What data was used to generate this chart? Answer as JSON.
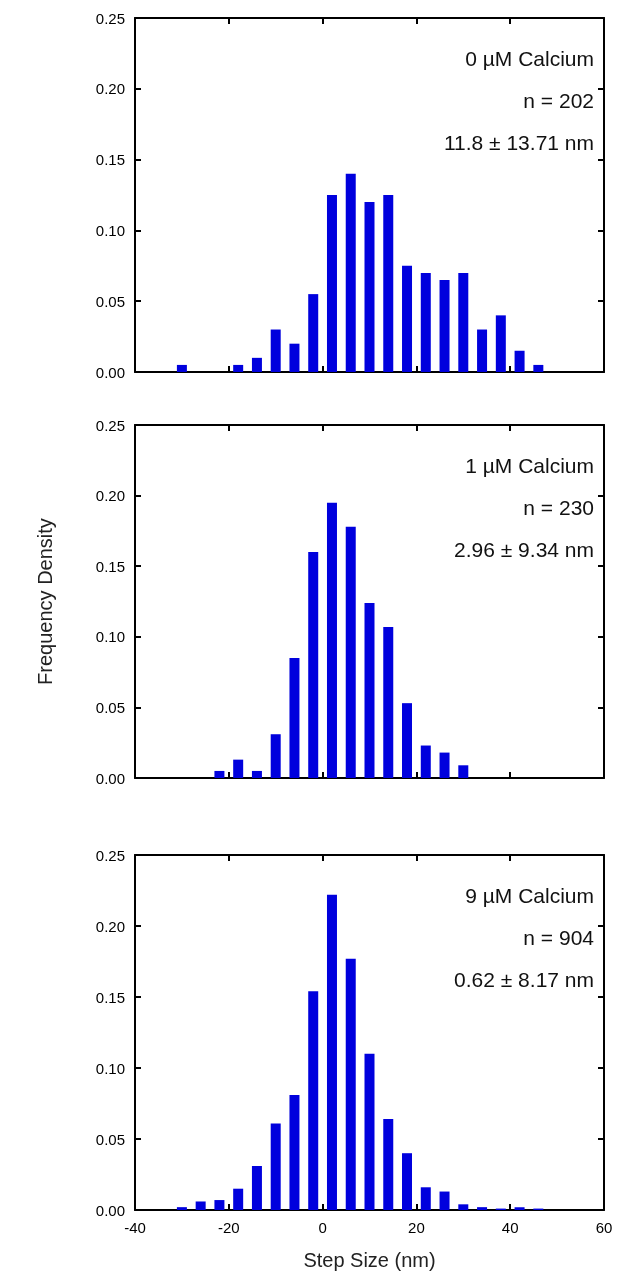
{
  "chart_data": [
    {
      "type": "histogram",
      "bins": [
        -32,
        -28,
        -24,
        -20,
        -16,
        -12,
        -8,
        -4,
        0,
        4,
        8,
        12,
        16,
        20,
        24,
        28,
        32,
        36,
        40,
        44,
        48
      ],
      "values": [
        0.005,
        0,
        0,
        0.005,
        0.01,
        0.03,
        0.02,
        0.055,
        0.125,
        0.14,
        0.12,
        0.125,
        0.075,
        0.07,
        0.065,
        0.07,
        0.03,
        0.04,
        0.015,
        0.005
      ],
      "color": "#0000dd",
      "xlim": [
        -40,
        60
      ],
      "xticks": [
        -40,
        -20,
        0,
        20,
        40,
        60
      ],
      "ylim": [
        0,
        0.25
      ],
      "yticks": [
        {
          "value": 0,
          "label": "0.00"
        },
        0.05,
        {
          "value": 0.1,
          "label": "0.10"
        },
        0.15,
        {
          "value": 0.2,
          "label": "0.20"
        },
        0.25
      ],
      "tick_labels": "y",
      "grid": false,
      "annotations": [
        "0 µM Calcium",
        "n = 202",
        "11.8 ± 13.71 nm"
      ]
    },
    {
      "type": "histogram",
      "bins": [
        -32,
        -28,
        -24,
        -20,
        -16,
        -12,
        -8,
        -4,
        0,
        4,
        8,
        12,
        16,
        20,
        24,
        28,
        32,
        36,
        40,
        44,
        48
      ],
      "values": [
        0,
        0,
        0.005,
        0.013,
        0.005,
        0.031,
        0.085,
        0.16,
        0.195,
        0.178,
        0.124,
        0.107,
        0.053,
        0.023,
        0.018,
        0.009,
        0,
        0,
        0,
        0
      ],
      "color": "#0000dd",
      "xlim": [
        -40,
        60
      ],
      "xticks": [
        -40,
        -20,
        0,
        20,
        40,
        60
      ],
      "ylim": [
        0,
        0.25
      ],
      "yticks": [
        {
          "value": 0,
          "label": "0.00"
        },
        0.05,
        {
          "value": 0.1,
          "label": "0.10"
        },
        0.15,
        {
          "value": 0.2,
          "label": "0.20"
        },
        0.25
      ],
      "tick_labels": "y",
      "grid": false,
      "ylabel": "Frequency Density",
      "annotations": [
        "1 µM Calcium",
        "n = 230",
        "2.96 ± 9.34 nm"
      ]
    },
    {
      "type": "histogram",
      "bins": [
        -32,
        -28,
        -24,
        -20,
        -16,
        -12,
        -8,
        -4,
        0,
        4,
        8,
        12,
        16,
        20,
        24,
        28,
        32,
        36,
        40,
        44,
        48
      ],
      "values": [
        0.002,
        0.006,
        0.007,
        0.015,
        0.031,
        0.061,
        0.081,
        0.154,
        0.222,
        0.177,
        0.11,
        0.064,
        0.04,
        0.016,
        0.013,
        0.004,
        0.002,
        0.001,
        0.002,
        0.001
      ],
      "color": "#0000dd",
      "xlim": [
        -40,
        60
      ],
      "xticks": [
        -40,
        -20,
        0,
        20,
        40,
        60
      ],
      "ylim": [
        0,
        0.25
      ],
      "yticks": [
        {
          "value": 0,
          "label": "0.00"
        },
        0.05,
        {
          "value": 0.1,
          "label": "0.10"
        },
        0.15,
        {
          "value": 0.2,
          "label": "0.20"
        },
        0.25
      ],
      "grid": false,
      "xlabel": "Step Size (nm)",
      "annotations": [
        "9 µM Calcium",
        "n = 904",
        "0.62 ± 8.17 nm"
      ]
    }
  ]
}
